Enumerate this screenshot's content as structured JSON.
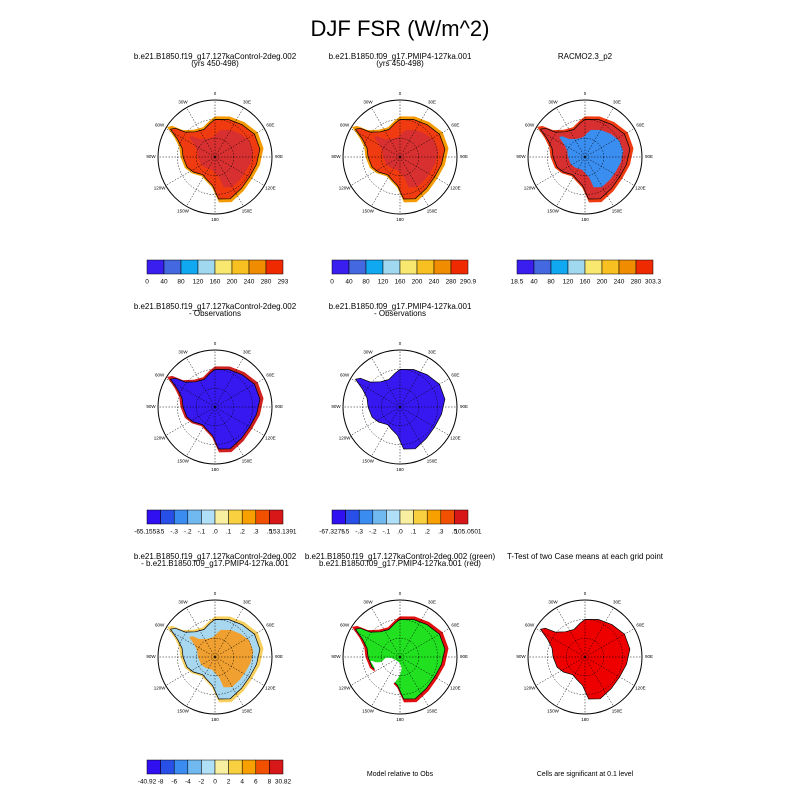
{
  "title": "DJF FSR (W/m^2)",
  "lon_labels": [
    "0",
    "30E",
    "60E",
    "90E",
    "120E",
    "150E",
    "180",
    "150W",
    "120W",
    "90W",
    "60W",
    "30W"
  ],
  "panels": [
    {
      "title_lines": [
        "b.e21.B1850.f19_g17.127kaControl-2deg.002",
        "(yrs 450-498)"
      ],
      "colorbar": {
        "labels": [
          "0",
          "40",
          "80",
          "120",
          "160",
          "200",
          "240",
          "280",
          "293"
        ]
      }
    },
    {
      "title_lines": [
        "b.e21.B1850.f09_g17.PMIP4-127ka.001",
        "(yrs 450-498)"
      ],
      "colorbar": {
        "labels": [
          "0",
          "40",
          "80",
          "120",
          "160",
          "200",
          "240",
          "280",
          "290.9"
        ]
      }
    },
    {
      "title_lines": [
        "RACMO2.3_p2"
      ],
      "colorbar": {
        "labels": [
          "18.5",
          "40",
          "80",
          "120",
          "160",
          "200",
          "240",
          "280",
          "303.3"
        ]
      }
    },
    {
      "title_lines": [
        "b.e21.B1850.f19_g17.127kaControl-2deg.002",
        "- Observations"
      ],
      "colorbar": {
        "labels": [
          "-65.1553",
          "-.5",
          "-.3",
          "-.2",
          "-.1",
          ".0",
          ".1",
          ".2",
          ".3",
          ".5",
          "153.1391"
        ]
      }
    },
    {
      "title_lines": [
        "b.e21.B1850.f09_g17.PMIP4-127ka.001",
        "- Observations"
      ],
      "colorbar": {
        "labels": [
          "-67.3275",
          "-.5",
          "-.3",
          "-.2",
          "-.1",
          ".0",
          ".1",
          ".2",
          ".3",
          ".5",
          "105.0501"
        ]
      }
    },
    {
      "title_lines": [
        "b.e21.B1850.f19_g17.127kaControl-2deg.002",
        "- b.e21.B1850.f09_g17.PMIP4-127ka.001"
      ],
      "colorbar": {
        "labels": [
          "-40.92",
          "-8",
          "-6",
          "-4",
          "-2",
          "0",
          "2",
          "4",
          "6",
          "8",
          "30.82"
        ]
      }
    },
    {
      "title_lines": [
        "b.e21.B1850.f19_g17.127kaControl-2deg.002 (green)",
        "b.e21.B1850.f09_g17.PMIP4-127ka.001 (red)"
      ],
      "caption": "Model relative to Obs"
    },
    {
      "title_lines": [
        "T-Test of two Case means at each grid point"
      ],
      "caption": "Cells are significant at 0.1 level"
    }
  ]
}
